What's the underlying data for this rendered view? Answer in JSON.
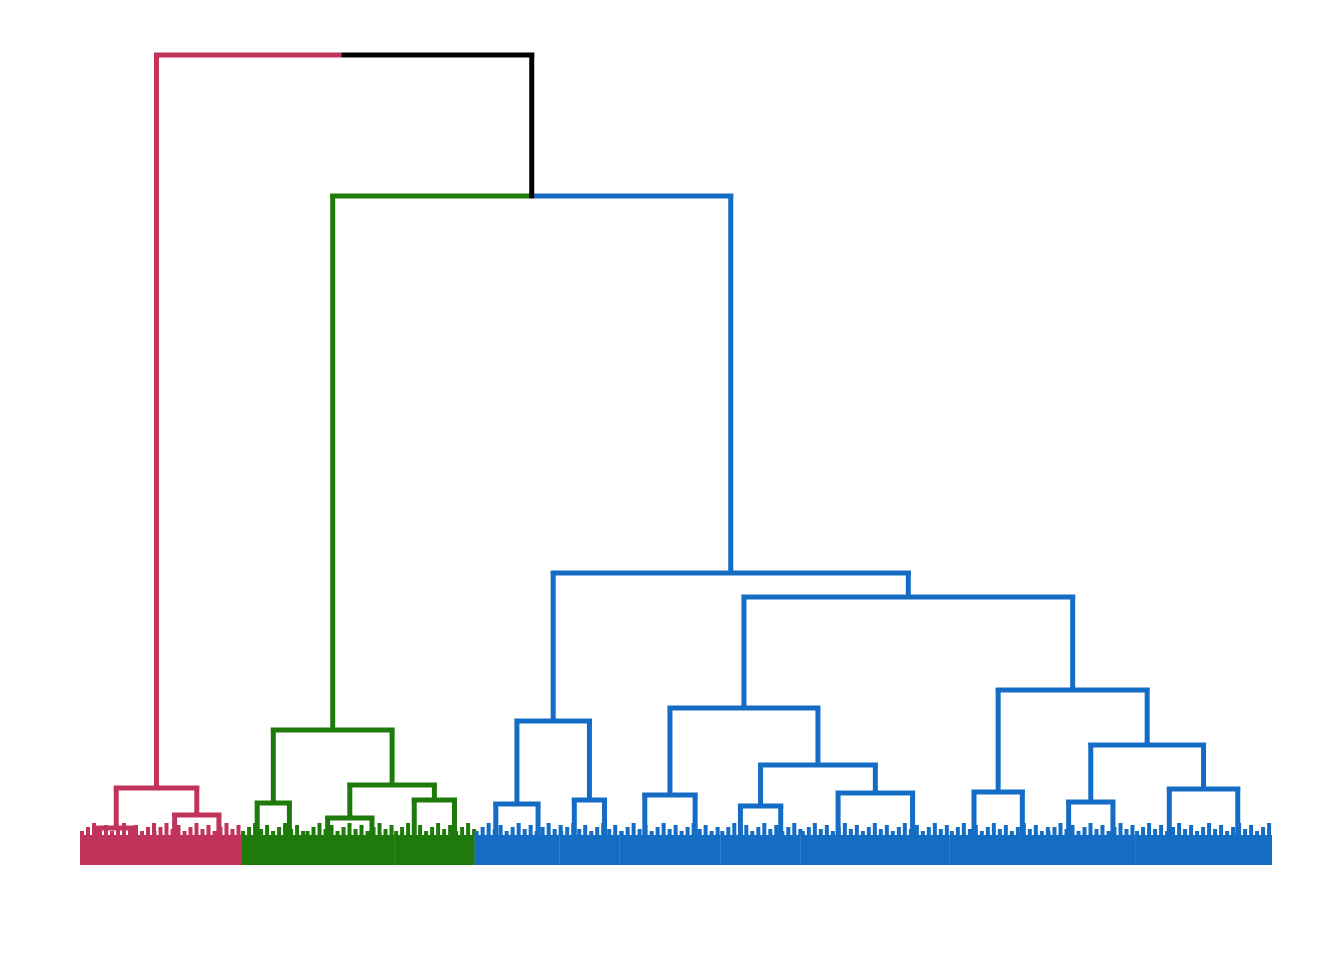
{
  "chart_data": {
    "type": "dendrogram",
    "tree": {
      "height": 810,
      "color": "#000000",
      "children": [
        {
          "height": 77,
          "color": "#c0335b",
          "children": [
            {
              "height": 37,
              "leaves": 18
            },
            {
              "height": 50,
              "leaves": 22
            }
          ]
        },
        {
          "height": 669,
          "color": "#000000",
          "children": [
            {
              "height": 135,
              "color": "#1e7a0a",
              "children": [
                {
                  "height": 62,
                  "leaves": 16
                },
                {
                  "height": 80,
                  "children": [
                    {
                      "height": 47,
                      "leaves": 22
                    },
                    {
                      "height": 65,
                      "leaves": 20
                    }
                  ]
                }
              ]
            },
            {
              "height": 292,
              "color": "#146cc4",
              "children": [
                {
                  "height": 144,
                  "children": [
                    {
                      "height": 61,
                      "leaves": 21
                    },
                    {
                      "height": 65,
                      "leaves": 15
                    }
                  ]
                },
                {
                  "height": 268,
                  "children": [
                    {
                      "height": 157,
                      "children": [
                        {
                          "height": 70,
                          "leaves": 25
                        },
                        {
                          "height": 100,
                          "children": [
                            {
                              "height": 59,
                              "leaves": 20
                            },
                            {
                              "height": 72,
                              "leaves": 37
                            }
                          ]
                        }
                      ]
                    },
                    {
                      "height": 175,
                      "children": [
                        {
                          "height": 73,
                          "leaves": 24
                        },
                        {
                          "height": 120,
                          "children": [
                            {
                              "height": 63,
                              "leaves": 22
                            },
                            {
                              "height": 76,
                              "leaves": 34
                            }
                          ]
                        }
                      ]
                    }
                  ]
                }
              ]
            }
          ]
        }
      ]
    }
  }
}
